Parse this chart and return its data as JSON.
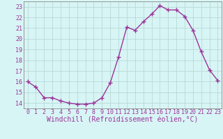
{
  "x": [
    0,
    1,
    2,
    3,
    4,
    5,
    6,
    7,
    8,
    9,
    10,
    11,
    12,
    13,
    14,
    15,
    16,
    17,
    18,
    19,
    20,
    21,
    22,
    23
  ],
  "y": [
    16.0,
    15.5,
    14.5,
    14.5,
    14.2,
    14.0,
    13.9,
    13.9,
    14.0,
    14.5,
    15.9,
    18.3,
    21.1,
    20.8,
    21.6,
    22.3,
    23.1,
    22.7,
    22.7,
    22.1,
    20.8,
    18.8,
    17.1,
    16.1
  ],
  "line_color": "#993399",
  "marker": "+",
  "marker_size": 4,
  "bg_color": "#d8f5f5",
  "grid_color": "#b8d8d8",
  "xlabel": "Windchill (Refroidissement éolien,°C)",
  "ylim": [
    13.5,
    23.5
  ],
  "yticks": [
    14,
    15,
    16,
    17,
    18,
    19,
    20,
    21,
    22,
    23
  ],
  "xticks": [
    0,
    1,
    2,
    3,
    4,
    5,
    6,
    7,
    8,
    9,
    10,
    11,
    12,
    13,
    14,
    15,
    16,
    17,
    18,
    19,
    20,
    21,
    22,
    23
  ],
  "xlabel_fontsize": 7,
  "tick_fontsize": 6,
  "label_color": "#993399",
  "line_width": 1.0,
  "spine_color": "#888888"
}
